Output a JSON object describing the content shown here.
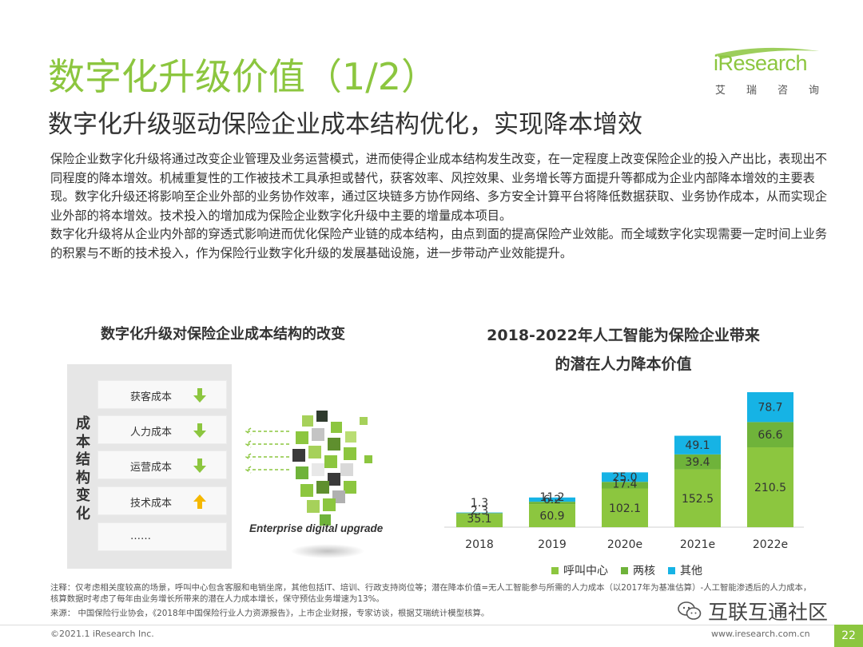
{
  "header": {
    "title": "数字化升级价值（1/2）",
    "subtitle": "数字化升级驱动保险企业成本结构优化，实现降本增效"
  },
  "logo": {
    "wordmark": "iResearch",
    "cn": [
      "艾",
      "瑞",
      "咨",
      "询"
    ]
  },
  "body": {
    "p1": "保险企业数字化升级将通过改变企业管理及业务运营模式，进而使得企业成本结构发生改变，在一定程度上改变保险企业的投入产出比，表现出不同程度的降本增效。机械重复性的工作被技术工具承担或替代，获客效率、风控效果、业务增长等方面提升等都成为企业内部降本增效的主要表现。数字化升级还将影响至企业外部的业务协作效率，通过区块链多方协作网络、多方安全计算平台将降低数据获取、业务协作成本，从而实现企业外部的将本增效。技术投入的增加成为保险企业数字化升级中主要的增量成本项目。",
    "p2": "数字化升级将从企业内外部的穿透式影响进而优化保险产业链的成本结构，由点到面的提高保险产业效能。而全域数字化实现需要一定时间上业务的积累与不断的技术投入，作为保险行业数字化升级的发展基础设施，进一步带动产业效能提升。"
  },
  "left_diagram": {
    "heading": "数字化升级对保险企业成本结构的改变",
    "vertical_label": "成本结构变化",
    "items": [
      {
        "label": "获客成本",
        "direction": "down"
      },
      {
        "label": "人力成本",
        "direction": "down"
      },
      {
        "label": "运营成本",
        "direction": "down"
      },
      {
        "label": "技术成本",
        "direction": "up"
      },
      {
        "label": "……",
        "direction": "none"
      }
    ],
    "caption": "Enterprise digital upgrade",
    "colors": {
      "down": "#8cc63f",
      "up": "#f5b800"
    }
  },
  "chart_data": {
    "type": "bar",
    "stacked": true,
    "title": "2018-2022年人工智能为保险企业带来的潜在人力降本价值",
    "title_lines": [
      "2018-2022年人工智能为保险企业带来",
      "的潜在人力降本价值"
    ],
    "categories": [
      "2018",
      "2019",
      "2020e",
      "2021e",
      "2022e"
    ],
    "series": [
      {
        "name": "呼叫中心",
        "color": "#8cc63f",
        "values": [
          35.1,
          60.9,
          102.1,
          152.5,
          210.5
        ]
      },
      {
        "name": "两核",
        "color": "#6fb33a",
        "values": [
          2.3,
          6.2,
          17.4,
          39.4,
          66.6
        ]
      },
      {
        "name": "其他",
        "color": "#16b3e5",
        "values": [
          1.3,
          11.2,
          25.0,
          49.1,
          78.7
        ]
      }
    ],
    "value_labels": [
      [
        "35.1",
        "60.9",
        "102.1",
        "152.5",
        "210.5"
      ],
      [
        "2.3",
        "6.2",
        "17.4",
        "39.4",
        "66.6"
      ],
      [
        "1.3",
        "11.2",
        "25.0",
        "49.1",
        "78.7"
      ]
    ],
    "legend": "bottom",
    "grid": false,
    "ylim": [
      0,
      360
    ]
  },
  "footer": {
    "note": "注释：仅考虑相关度较高的场景，呼叫中心包含客服和电销坐席，其他包括IT、培训、行政支持岗位等；潜在降本价值=无人工智能参与所需的人力成本（以2017年为基准估算）-人工智能渗透后的人力成本，核算数据时考虑了每年由业务增长所带来的潜在人力成本增长，保守预估业务增速为13%。",
    "source": "来源：  中国保险行业协会，《2018年中国保险行业人力资源报告》，上市企业财报，专家访谈，根据艾瑞统计模型核算。",
    "copyright": "©2021.1 iResearch Inc.",
    "site": "www.iresearch.com.cn",
    "page": "22",
    "watermark": "互联互通社区"
  }
}
